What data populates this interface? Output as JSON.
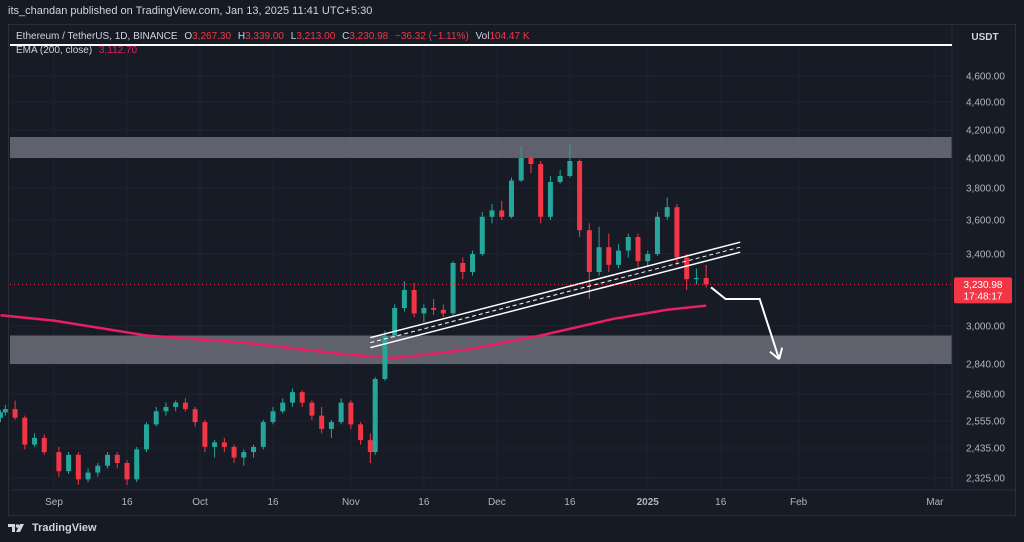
{
  "header": {
    "published": "its_chandan published on TradingView.com, Jan 13, 2025 11:41 UTC+5:30"
  },
  "legend": {
    "symbol": "Ethereum / TetherUS, 1D, BINANCE",
    "o_label": "O",
    "o_val": "3,267.30",
    "h_label": "H",
    "h_val": "3,339.00",
    "l_label": "L",
    "l_val": "3,213.00",
    "c_label": "C",
    "c_val": "3,230.98",
    "change": "−36.32 (−1.11%)",
    "vol_label": "Vol",
    "vol_val": "104.47 K",
    "ema_label": "EMA (200, close)",
    "ema_val": "3,112.70"
  },
  "currency": "USDT",
  "price_tag": {
    "price": "3,230.98",
    "countdown": "17:48:17"
  },
  "footer": {
    "brand": "TradingView"
  },
  "colors": {
    "up": "#26a69a",
    "down": "#f23645",
    "ema": "#e91e63",
    "zone": "#787b86",
    "background": "#161a25",
    "grid": "#1f2330"
  },
  "chart_data": {
    "type": "candlestick",
    "title": "Ethereum / TetherUS, 1D, BINANCE",
    "y_ticks": [
      "4,600.00",
      "4,400.00",
      "4,200.00",
      "4,000.00",
      "3,800.00",
      "3,600.00",
      "3,400.00",
      "3,000.00",
      "2,840.00",
      "2,680.00",
      "2,555.00",
      "2,435.00",
      "2,325.00"
    ],
    "y_tick_values": [
      4600,
      4400,
      4200,
      4000,
      3800,
      3600,
      3400,
      3000,
      2840,
      2680,
      2555,
      2435,
      2325
    ],
    "x_ticks": [
      "Sep",
      "16",
      "Oct",
      "16",
      "Nov",
      "16",
      "Dec",
      "16",
      "2025",
      "16",
      "Feb",
      "Mar"
    ],
    "x_tick_dates": [
      "2024-09-01",
      "2024-09-16",
      "2024-10-01",
      "2024-10-16",
      "2024-11-01",
      "2024-11-16",
      "2024-12-01",
      "2024-12-16",
      "2025-01-01",
      "2025-01-16",
      "2025-02-01",
      "2025-03-01"
    ],
    "zones": [
      {
        "name": "resistance",
        "from": 4000,
        "to": 4150
      },
      {
        "name": "support",
        "from": 2840,
        "to": 2960
      }
    ],
    "trendline": {
      "start": [
        "2024-11-05",
        2930
      ],
      "end": [
        "2025-01-20",
        3440
      ]
    },
    "ema": [
      [
        "2024-08-21",
        3060
      ],
      [
        "2024-09-01",
        3030
      ],
      [
        "2024-09-20",
        2960
      ],
      [
        "2024-10-10",
        2930
      ],
      [
        "2024-10-31",
        2880
      ],
      [
        "2024-11-10",
        2865
      ],
      [
        "2024-11-25",
        2900
      ],
      [
        "2024-12-10",
        2960
      ],
      [
        "2024-12-25",
        3040
      ],
      [
        "2025-01-05",
        3090
      ],
      [
        "2025-01-13",
        3113
      ]
    ],
    "projection": [
      [
        "2025-01-14",
        3215
      ],
      [
        "2025-01-17",
        3150
      ],
      [
        "2025-01-24",
        3150
      ],
      [
        "2025-01-28",
        2860
      ]
    ],
    "candles": [
      [
        "2024-08-21",
        2570,
        2605,
        2550,
        2595
      ],
      [
        "2024-08-22",
        2595,
        2630,
        2580,
        2610
      ],
      [
        "2024-08-24",
        2610,
        2650,
        2560,
        2570
      ],
      [
        "2024-08-26",
        2570,
        2580,
        2430,
        2450
      ],
      [
        "2024-08-28",
        2450,
        2500,
        2440,
        2480
      ],
      [
        "2024-08-30",
        2480,
        2495,
        2410,
        2420
      ],
      [
        "2024-09-02",
        2420,
        2440,
        2330,
        2350
      ],
      [
        "2024-09-04",
        2350,
        2420,
        2340,
        2410
      ],
      [
        "2024-09-06",
        2410,
        2420,
        2300,
        2320
      ],
      [
        "2024-09-08",
        2320,
        2360,
        2310,
        2345
      ],
      [
        "2024-09-10",
        2345,
        2380,
        2330,
        2370
      ],
      [
        "2024-09-12",
        2370,
        2420,
        2360,
        2410
      ],
      [
        "2024-09-14",
        2410,
        2420,
        2360,
        2380
      ],
      [
        "2024-09-16",
        2380,
        2390,
        2300,
        2320
      ],
      [
        "2024-09-18",
        2320,
        2440,
        2310,
        2430
      ],
      [
        "2024-09-20",
        2430,
        2550,
        2420,
        2540
      ],
      [
        "2024-09-22",
        2540,
        2620,
        2530,
        2600
      ],
      [
        "2024-09-24",
        2600,
        2640,
        2580,
        2620
      ],
      [
        "2024-09-26",
        2620,
        2650,
        2600,
        2640
      ],
      [
        "2024-09-28",
        2640,
        2660,
        2600,
        2610
      ],
      [
        "2024-09-30",
        2610,
        2620,
        2530,
        2550
      ],
      [
        "2024-10-02",
        2550,
        2560,
        2420,
        2440
      ],
      [
        "2024-10-04",
        2440,
        2470,
        2400,
        2460
      ],
      [
        "2024-10-06",
        2460,
        2480,
        2420,
        2440
      ],
      [
        "2024-10-08",
        2440,
        2450,
        2380,
        2400
      ],
      [
        "2024-10-10",
        2400,
        2430,
        2370,
        2420
      ],
      [
        "2024-10-12",
        2420,
        2450,
        2400,
        2440
      ],
      [
        "2024-10-14",
        2440,
        2560,
        2430,
        2550
      ],
      [
        "2024-10-16",
        2550,
        2620,
        2540,
        2600
      ],
      [
        "2024-10-18",
        2600,
        2660,
        2590,
        2640
      ],
      [
        "2024-10-20",
        2640,
        2710,
        2620,
        2690
      ],
      [
        "2024-10-22",
        2690,
        2700,
        2620,
        2640
      ],
      [
        "2024-10-24",
        2640,
        2650,
        2560,
        2580
      ],
      [
        "2024-10-26",
        2580,
        2620,
        2500,
        2520
      ],
      [
        "2024-10-28",
        2520,
        2560,
        2480,
        2550
      ],
      [
        "2024-10-30",
        2550,
        2660,
        2540,
        2640
      ],
      [
        "2024-11-01",
        2640,
        2650,
        2520,
        2540
      ],
      [
        "2024-11-03",
        2540,
        2550,
        2450,
        2470
      ],
      [
        "2024-11-05",
        2470,
        2500,
        2380,
        2420
      ],
      [
        "2024-11-06",
        2420,
        2770,
        2410,
        2760
      ],
      [
        "2024-11-08",
        2760,
        2980,
        2750,
        2960
      ],
      [
        "2024-11-10",
        2960,
        3120,
        2950,
        3100
      ],
      [
        "2024-11-12",
        3100,
        3250,
        3080,
        3200
      ],
      [
        "2024-11-14",
        3200,
        3240,
        3050,
        3070
      ],
      [
        "2024-11-16",
        3070,
        3120,
        3020,
        3100
      ],
      [
        "2024-11-18",
        3100,
        3150,
        3060,
        3090
      ],
      [
        "2024-11-20",
        3090,
        3120,
        3050,
        3070
      ],
      [
        "2024-11-22",
        3070,
        3360,
        3060,
        3350
      ],
      [
        "2024-11-24",
        3350,
        3380,
        3260,
        3300
      ],
      [
        "2024-11-26",
        3300,
        3420,
        3280,
        3400
      ],
      [
        "2024-11-28",
        3400,
        3650,
        3390,
        3620
      ],
      [
        "2024-11-30",
        3620,
        3700,
        3580,
        3660
      ],
      [
        "2024-12-02",
        3660,
        3720,
        3600,
        3620
      ],
      [
        "2024-12-04",
        3620,
        3870,
        3610,
        3850
      ],
      [
        "2024-12-06",
        3850,
        4080,
        3840,
        4000
      ],
      [
        "2024-12-08",
        4000,
        4020,
        3900,
        3960
      ],
      [
        "2024-12-10",
        3960,
        3980,
        3580,
        3620
      ],
      [
        "2024-12-12",
        3620,
        3880,
        3600,
        3840
      ],
      [
        "2024-12-14",
        3840,
        3920,
        3830,
        3880
      ],
      [
        "2024-12-16",
        3880,
        4100,
        3870,
        3980
      ],
      [
        "2024-12-18",
        3980,
        3990,
        3500,
        3540
      ],
      [
        "2024-12-20",
        3540,
        3580,
        3150,
        3300
      ],
      [
        "2024-12-22",
        3300,
        3560,
        3280,
        3440
      ],
      [
        "2024-12-24",
        3440,
        3520,
        3300,
        3340
      ],
      [
        "2024-12-26",
        3340,
        3460,
        3320,
        3420
      ],
      [
        "2024-12-28",
        3420,
        3520,
        3380,
        3500
      ],
      [
        "2024-12-30",
        3500,
        3520,
        3320,
        3360
      ],
      [
        "2025-01-01",
        3360,
        3420,
        3330,
        3400
      ],
      [
        "2025-01-03",
        3400,
        3650,
        3390,
        3620
      ],
      [
        "2025-01-05",
        3620,
        3740,
        3600,
        3680
      ],
      [
        "2025-01-07",
        3680,
        3700,
        3340,
        3380
      ],
      [
        "2025-01-09",
        3380,
        3400,
        3200,
        3260
      ],
      [
        "2025-01-11",
        3260,
        3320,
        3230,
        3267
      ],
      [
        "2025-01-13",
        3267,
        3339,
        3213,
        3231
      ]
    ]
  }
}
